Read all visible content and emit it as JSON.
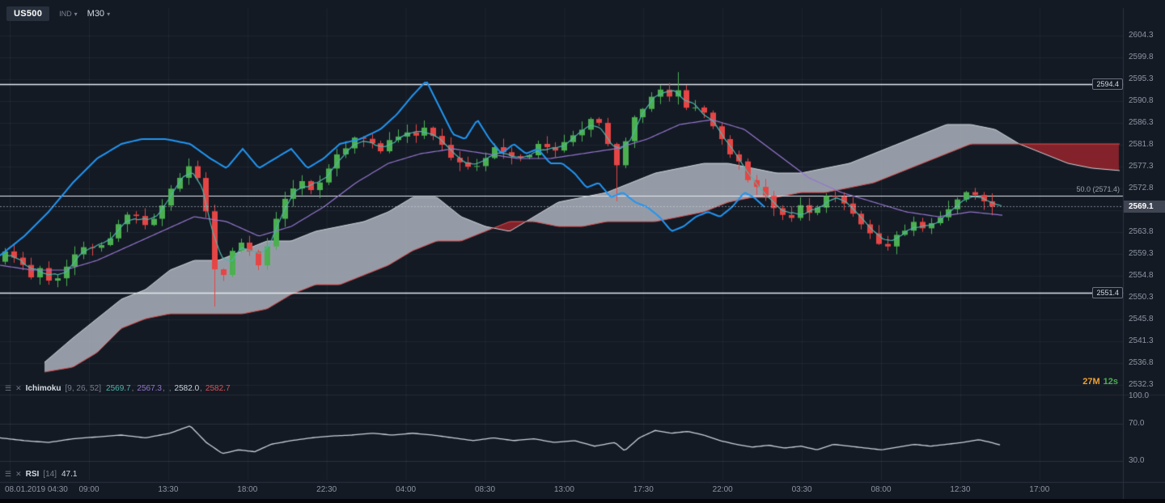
{
  "toolbar": {
    "symbol": "US500",
    "instrument_type": "IND",
    "timeframe": "M30"
  },
  "colors": {
    "background": "#131a24",
    "up": "#4caf50",
    "down": "#e64545",
    "cloud_bull": "rgba(173,179,189,0.85)",
    "cloud_bear": "rgba(152,36,44,0.85)",
    "senkou_a_line": "#cfd3da",
    "senkou_b_line": "#e05050",
    "tenkan_line": "#4db6ac",
    "kijun_line": "#9575cd",
    "chikou_line": "#2196f3",
    "rsi_line": "#ccd1d9",
    "level_line": "#e6e9ef",
    "countdown_minutes": "#f0a12f",
    "countdown_seconds": "#4caf50"
  },
  "price_axis": {
    "ticks": [
      "2604.3",
      "2599.8",
      "2595.3",
      "2590.8",
      "2586.3",
      "2581.8",
      "2577.3",
      "2572.8",
      "2568.3",
      "2563.8",
      "2559.3",
      "2554.8",
      "2550.3",
      "2545.8",
      "2541.3",
      "2536.8",
      "2532.3"
    ],
    "current_price": "2569.1"
  },
  "rsi_axis": {
    "ticks": [
      "100.0",
      "70.0",
      "30.0"
    ]
  },
  "time_axis": {
    "labels": [
      "08.01.2019 04:30",
      "09:00",
      "13:30",
      "18:00",
      "22:30",
      "04:00",
      "08:30",
      "13:00",
      "17:30",
      "22:00",
      "03:30",
      "08:00",
      "12:30",
      "17:00"
    ]
  },
  "indicators": {
    "ichimoku": {
      "title": "Ichimoku",
      "params": "[9, 26, 52]",
      "sep": ",",
      "values": [
        "2569.7",
        "2567.3",
        "",
        "2582.0",
        "2582.7"
      ]
    },
    "rsi": {
      "title": "RSI",
      "params": "[14]",
      "value": "47.1"
    }
  },
  "countdown": {
    "minutes": "27M",
    "seconds": "12s"
  },
  "chart_data": {
    "type": "candlestick",
    "symbol": "US500",
    "timeframe": "M30",
    "current_price": 2569.1,
    "price_axis_range": [
      2532.3,
      2604.3
    ],
    "levels": [
      {
        "label": "2594.4",
        "price": 2594.4,
        "boxed": true
      },
      {
        "label": "50.0 (2571.4)",
        "price": 2571.4,
        "boxed": false
      },
      {
        "label": "2551.4",
        "price": 2551.4,
        "boxed": true
      }
    ],
    "price_path": [
      0,
      2558,
      14,
      2561,
      28,
      2557,
      42,
      2555,
      56,
      2557,
      70,
      2553,
      84,
      2556,
      98,
      2559,
      112,
      2562,
      126,
      2560,
      140,
      2563,
      154,
      2566,
      168,
      2568,
      182,
      2565,
      196,
      2567,
      210,
      2571,
      224,
      2575,
      238,
      2578,
      250,
      2575,
      262,
      2566,
      274,
      2552,
      286,
      2558,
      298,
      2563,
      310,
      2561,
      322,
      2556,
      336,
      2562,
      350,
      2569,
      364,
      2572,
      378,
      2575,
      392,
      2572,
      406,
      2576,
      420,
      2579,
      434,
      2581,
      448,
      2584,
      462,
      2582,
      476,
      2580,
      490,
      2583,
      504,
      2585,
      518,
      2584,
      532,
      2585,
      546,
      2583,
      560,
      2580,
      574,
      2578,
      588,
      2577,
      602,
      2579,
      616,
      2581,
      630,
      2580,
      644,
      2578,
      658,
      2580,
      672,
      2582,
      686,
      2580,
      700,
      2582,
      714,
      2584,
      728,
      2586,
      742,
      2587,
      756,
      2582,
      768,
      2577,
      782,
      2585,
      796,
      2589,
      810,
      2592,
      822,
      2594,
      834,
      2592,
      846,
      2593,
      858,
      2588,
      870,
      2590,
      882,
      2586,
      894,
      2584,
      908,
      2580,
      922,
      2577,
      936,
      2573,
      950,
      2571,
      964,
      2569,
      978,
      2566,
      992,
      2569,
      1006,
      2567,
      1020,
      2570,
      1034,
      2572,
      1048,
      2570,
      1062,
      2567,
      1076,
      2565,
      1090,
      2562,
      1104,
      2561,
      1118,
      2564,
      1132,
      2566,
      1146,
      2564,
      1160,
      2566,
      1174,
      2568,
      1188,
      2570,
      1202,
      2572,
      1216,
      2571,
      1230,
      2569,
      1240,
      2569.1
    ],
    "chikou": [
      0,
      2559,
      30,
      2563,
      60,
      2568,
      90,
      2574,
      120,
      2579,
      150,
      2582,
      175,
      2583,
      205,
      2583,
      235,
      2582,
      260,
      2579,
      280,
      2577,
      300,
      2581,
      320,
      2577,
      340,
      2579,
      360,
      2581,
      380,
      2577,
      400,
      2579,
      420,
      2582,
      445,
      2583,
      470,
      2585,
      490,
      2588,
      510,
      2592,
      527,
      2595,
      545,
      2589,
      560,
      2584,
      575,
      2583,
      590,
      2587,
      605,
      2583,
      620,
      2580,
      635,
      2582,
      650,
      2580,
      665,
      2581,
      680,
      2578,
      695,
      2578,
      710,
      2576,
      725,
      2573,
      740,
      2574,
      755,
      2571,
      770,
      2572,
      785,
      2570,
      800,
      2569,
      815,
      2567,
      830,
      2564,
      845,
      2565,
      860,
      2567,
      875,
      2568,
      890,
      2567,
      905,
      2569,
      920,
      2572,
      932,
      2571,
      945,
      2569
    ],
    "kijun": [
      0,
      2557,
      40,
      2556,
      80,
      2556,
      120,
      2558,
      160,
      2561,
      200,
      2564,
      240,
      2567,
      280,
      2566,
      320,
      2563,
      360,
      2565,
      400,
      2569,
      440,
      2574,
      480,
      2578,
      520,
      2580,
      560,
      2581,
      600,
      2580,
      640,
      2579,
      680,
      2579,
      720,
      2580,
      760,
      2581,
      800,
      2583,
      840,
      2586,
      880,
      2587,
      920,
      2585,
      960,
      2580,
      1000,
      2575,
      1040,
      2572,
      1080,
      2570,
      1120,
      2568,
      1160,
      2567,
      1200,
      2568,
      1240,
      2567.3
    ],
    "senkou_a": [
      55,
      2537,
      90,
      2542,
      120,
      2546,
      150,
      2550,
      180,
      2552,
      210,
      2556,
      240,
      2558,
      270,
      2558,
      300,
      2560,
      330,
      2562,
      360,
      2562,
      390,
      2564,
      420,
      2565,
      450,
      2566,
      480,
      2568,
      510,
      2571,
      540,
      2571,
      570,
      2567,
      600,
      2565,
      630,
      2564,
      660,
      2567,
      690,
      2570,
      720,
      2571,
      750,
      2572,
      780,
      2574,
      810,
      2576,
      840,
      2577,
      870,
      2578,
      900,
      2578,
      930,
      2577,
      960,
      2576,
      990,
      2576,
      1020,
      2577,
      1050,
      2578,
      1080,
      2580,
      1110,
      2582,
      1140,
      2584,
      1170,
      2586,
      1200,
      2586,
      1230,
      2585,
      1260,
      2582,
      1290,
      2580,
      1320,
      2578,
      1350,
      2577,
      1385,
      2576.5
    ],
    "senkou_b": [
      55,
      2535,
      90,
      2536,
      120,
      2539,
      150,
      2544,
      180,
      2546,
      210,
      2547,
      240,
      2547,
      270,
      2547,
      300,
      2547,
      330,
      2548,
      360,
      2551,
      390,
      2553,
      420,
      2553,
      450,
      2555,
      480,
      2557,
      510,
      2560,
      540,
      2562,
      570,
      2562,
      600,
      2564,
      630,
      2566,
      660,
      2566,
      690,
      2565,
      720,
      2565,
      750,
      2566,
      780,
      2566,
      810,
      2566,
      840,
      2567,
      870,
      2568,
      900,
      2570,
      930,
      2571,
      960,
      2571,
      990,
      2572,
      1020,
      2572,
      1050,
      2573,
      1080,
      2574,
      1110,
      2576,
      1140,
      2578,
      1170,
      2580,
      1200,
      2582,
      1230,
      2582,
      1260,
      2582,
      1290,
      2582,
      1320,
      2582,
      1350,
      2582,
      1385,
      2582
    ],
    "rsi": [
      0,
      55,
      30,
      52,
      60,
      50,
      90,
      54,
      120,
      56,
      150,
      58,
      180,
      55,
      210,
      60,
      235,
      68,
      255,
      50,
      275,
      38,
      295,
      42,
      315,
      40,
      335,
      48,
      360,
      52,
      385,
      55,
      410,
      57,
      435,
      58,
      460,
      60,
      485,
      58,
      510,
      60,
      535,
      58,
      560,
      55,
      585,
      52,
      610,
      55,
      635,
      52,
      660,
      54,
      685,
      50,
      710,
      52,
      735,
      46,
      760,
      50,
      772,
      41,
      790,
      55,
      810,
      63,
      830,
      60,
      850,
      62,
      870,
      58,
      890,
      52,
      910,
      48,
      930,
      45,
      950,
      47,
      970,
      44,
      990,
      46,
      1010,
      42,
      1030,
      48,
      1050,
      46,
      1070,
      44,
      1090,
      42,
      1110,
      45,
      1130,
      48,
      1150,
      46,
      1170,
      48,
      1190,
      50,
      1210,
      53,
      1225,
      50,
      1237,
      47.1
    ]
  }
}
